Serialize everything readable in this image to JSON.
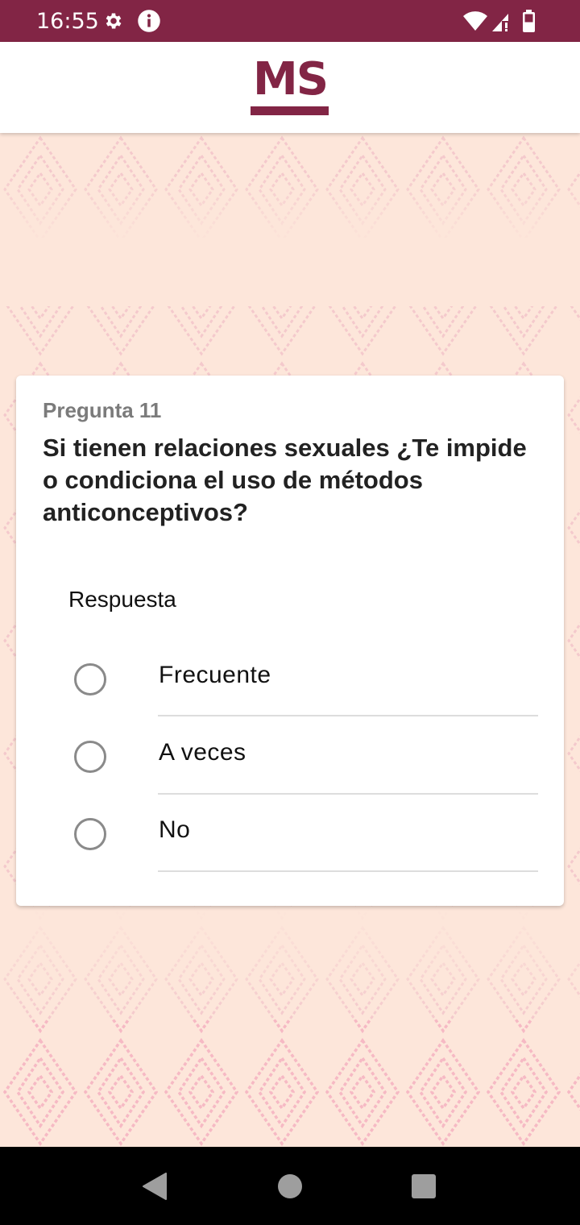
{
  "status_bar": {
    "time": "16:55",
    "icons": [
      "gear-icon",
      "info-icon",
      "wifi-icon",
      "signal-icon",
      "battery-icon"
    ],
    "background": "#822545"
  },
  "header": {
    "logo_text": "MS",
    "brand_color": "#822545"
  },
  "card": {
    "question_number": "Pregunta 11",
    "question_text": "Si tienen relaciones sexuales ¿Te impide o condiciona el uso de métodos anticonceptivos?",
    "answer_label": "Respuesta",
    "options": [
      {
        "label": "Frecuente",
        "selected": false
      },
      {
        "label": "A veces",
        "selected": false
      },
      {
        "label": "No",
        "selected": false
      }
    ]
  },
  "nav_bar": {
    "icons": [
      "back-icon",
      "home-icon",
      "recents-icon"
    ]
  },
  "colors": {
    "background": "#fde6da",
    "pattern": "#f6b9c4",
    "card": "#ffffff"
  }
}
